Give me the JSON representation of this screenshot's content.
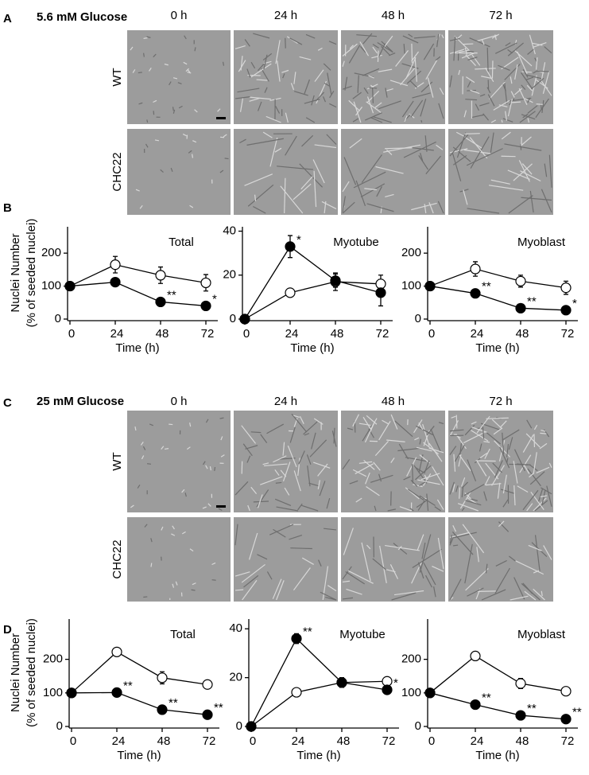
{
  "panels": [
    {
      "letter": "A",
      "title": "5.6 mM Glucose",
      "columns": [
        "0 h",
        "24 h",
        "48 h",
        "72 h"
      ],
      "rows": [
        "WT",
        "CHC22"
      ]
    },
    {
      "letter": "B"
    },
    {
      "letter": "C",
      "title": "25 mM Glucose",
      "columns": [
        "0 h",
        "24 h",
        "48 h",
        "72 h"
      ],
      "rows": [
        "WT",
        "CHC22"
      ]
    },
    {
      "letter": "D"
    }
  ],
  "chart_data": [
    {
      "type": "line",
      "title": "Total",
      "xlabel": "Time (h)",
      "ylabel": [
        "Nuclei Number",
        "(% of seeded nuclei)"
      ],
      "x": [
        0,
        24,
        48,
        72
      ],
      "xlim": [
        0,
        80
      ],
      "xticks": [
        0,
        24,
        48,
        72
      ],
      "ylim": [
        0,
        280
      ],
      "yticks": [
        0,
        100,
        200
      ],
      "series": [
        {
          "color": "#ffffff",
          "values": [
            100,
            165,
            133,
            110
          ],
          "errors": [
            0,
            25,
            25,
            25
          ]
        },
        {
          "color": "#000000",
          "values": [
            100,
            112,
            52,
            40
          ],
          "errors": [
            0,
            12,
            7,
            12
          ],
          "annotations": [
            {
              "x": 48,
              "text": "**"
            },
            {
              "x": 72,
              "text": "*"
            }
          ]
        }
      ]
    },
    {
      "type": "line",
      "title": "Myotube",
      "xlabel": "Time (h)",
      "x": [
        0,
        24,
        48,
        72
      ],
      "xlim": [
        0,
        80
      ],
      "xticks": [
        0,
        24,
        48,
        72
      ],
      "ylim": [
        0,
        42
      ],
      "yticks": [
        0,
        20,
        40
      ],
      "series": [
        {
          "color": "#ffffff",
          "values": [
            0,
            12,
            17,
            16
          ],
          "errors": [
            0,
            1,
            4,
            4
          ]
        },
        {
          "color": "#000000",
          "values": [
            0,
            33,
            17.5,
            12
          ],
          "errors": [
            0,
            5,
            3,
            6
          ],
          "annotations": [
            {
              "x": 24,
              "text": "*"
            }
          ]
        }
      ]
    },
    {
      "type": "line",
      "title": "Myoblast",
      "xlabel": "Time (h)",
      "x": [
        0,
        24,
        48,
        72
      ],
      "xlim": [
        0,
        80
      ],
      "xticks": [
        0,
        24,
        48,
        72
      ],
      "ylim": [
        0,
        280
      ],
      "yticks": [
        0,
        100,
        200
      ],
      "series": [
        {
          "color": "#ffffff",
          "values": [
            100,
            152,
            115,
            95
          ],
          "errors": [
            0,
            22,
            18,
            20
          ]
        },
        {
          "color": "#000000",
          "values": [
            100,
            78,
            33,
            27
          ],
          "errors": [
            0,
            8,
            4,
            9
          ],
          "annotations": [
            {
              "x": 24,
              "text": "**"
            },
            {
              "x": 48,
              "text": "**"
            },
            {
              "x": 72,
              "text": "*"
            }
          ]
        }
      ]
    },
    {
      "type": "line",
      "title": "Total",
      "xlabel": "Time (h)",
      "ylabel": [
        "Nuclei Number",
        "(% of seeded nuclei)"
      ],
      "x": [
        0,
        24,
        48,
        72
      ],
      "xlim": [
        0,
        80
      ],
      "xticks": [
        0,
        24,
        48,
        72
      ],
      "ylim": [
        0,
        320
      ],
      "yticks": [
        0,
        100,
        200
      ],
      "series": [
        {
          "color": "#ffffff",
          "values": [
            100,
            222,
            145,
            125
          ],
          "errors": [
            0,
            6,
            18,
            12
          ]
        },
        {
          "color": "#000000",
          "values": [
            100,
            101,
            50,
            35
          ],
          "errors": [
            0,
            10,
            4,
            4
          ],
          "annotations": [
            {
              "x": 24,
              "text": "**"
            },
            {
              "x": 48,
              "text": "**"
            },
            {
              "x": 72,
              "text": "**"
            }
          ]
        }
      ]
    },
    {
      "type": "line",
      "title": "Myotube",
      "xlabel": "Time (h)",
      "x": [
        0,
        24,
        48,
        72
      ],
      "xlim": [
        0,
        80
      ],
      "xticks": [
        0,
        24,
        48,
        72
      ],
      "ylim": [
        0,
        44
      ],
      "yticks": [
        0,
        20,
        40
      ],
      "series": [
        {
          "color": "#ffffff",
          "values": [
            0,
            14,
            18,
            18.5
          ],
          "errors": [
            0,
            1,
            1,
            1
          ]
        },
        {
          "color": "#000000",
          "values": [
            0,
            36,
            18,
            15
          ],
          "errors": [
            0,
            2,
            2,
            1
          ],
          "annotations": [
            {
              "x": 24,
              "text": "**"
            },
            {
              "x": 72,
              "text": "*"
            }
          ]
        }
      ]
    },
    {
      "type": "line",
      "title": "Myoblast",
      "xlabel": "Time (h)",
      "x": [
        0,
        24,
        48,
        72
      ],
      "xlim": [
        0,
        80
      ],
      "xticks": [
        0,
        24,
        48,
        72
      ],
      "ylim": [
        0,
        320
      ],
      "yticks": [
        0,
        100,
        200
      ],
      "series": [
        {
          "color": "#ffffff",
          "values": [
            100,
            210,
            128,
            105
          ],
          "errors": [
            0,
            3,
            15,
            10
          ]
        },
        {
          "color": "#000000",
          "values": [
            100,
            65,
            33,
            22
          ],
          "errors": [
            0,
            5,
            3,
            3
          ],
          "annotations": [
            {
              "x": 24,
              "text": "**"
            },
            {
              "x": 48,
              "text": "**"
            },
            {
              "x": 72,
              "text": "**"
            }
          ]
        }
      ]
    }
  ]
}
